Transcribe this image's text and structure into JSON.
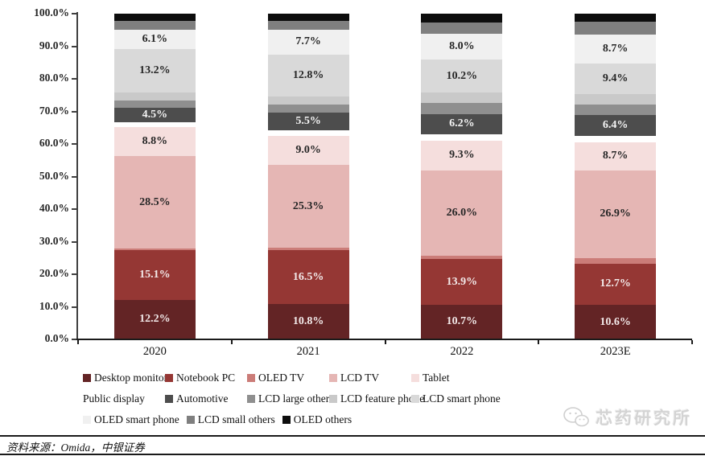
{
  "source_note": "资料来源：Omida，中银证券",
  "watermark": {
    "text": "芯药研究所",
    "icon": "wechat-bubbles-icon"
  },
  "chart_data": {
    "type": "bar",
    "stacked": true,
    "title": "",
    "categories": [
      "2020",
      "2021",
      "2022",
      "2023E"
    ],
    "series": [
      {
        "name": "Desktop monitor",
        "color": "#632425",
        "show_label": true,
        "label_color": "#f3eaea",
        "values": [
          12.2,
          10.8,
          10.7,
          10.6
        ]
      },
      {
        "name": "Notebook PC",
        "color": "#953734",
        "show_label": true,
        "label_color": "#f3eaea",
        "values": [
          15.1,
          16.5,
          13.9,
          12.7
        ]
      },
      {
        "name": "OLED TV",
        "color": "#cb7c78",
        "show_label": false,
        "values": [
          0.5,
          0.9,
          1.2,
          1.7
        ]
      },
      {
        "name": "LCD TV",
        "color": "#e5b6b4",
        "show_label": true,
        "label_color": "#262626",
        "values": [
          28.5,
          25.3,
          26.0,
          26.9
        ]
      },
      {
        "name": "Tablet",
        "color": "#f5dedd",
        "show_label": true,
        "label_color": "#262626",
        "values": [
          8.8,
          9.0,
          9.3,
          8.7
        ]
      },
      {
        "name": "Public display",
        "color": "#ffffff",
        "show_label": false,
        "values": [
          1.6,
          1.7,
          1.9,
          1.8
        ]
      },
      {
        "name": "Automotive",
        "color": "#4d4d4d",
        "show_label": true,
        "label_color": "#f5f5f5",
        "values": [
          4.5,
          5.5,
          6.2,
          6.4
        ]
      },
      {
        "name": "LCD large others",
        "color": "#8f8f8f",
        "show_label": false,
        "values": [
          2.2,
          2.4,
          3.3,
          3.3
        ]
      },
      {
        "name": "LCD feature phone",
        "color": "#c9c9c9",
        "show_label": false,
        "values": [
          2.5,
          2.6,
          3.2,
          3.3
        ]
      },
      {
        "name": "LCD smart phone",
        "color": "#d9d9d9",
        "show_label": true,
        "label_color": "#262626",
        "values": [
          13.2,
          12.8,
          10.2,
          9.4
        ]
      },
      {
        "name": "OLED smart phone",
        "color": "#f0f0f0",
        "show_label": true,
        "label_color": "#262626",
        "values": [
          6.1,
          7.7,
          8.0,
          8.7
        ]
      },
      {
        "name": "LCD small others",
        "color": "#7f7f7f",
        "show_label": false,
        "values": [
          2.6,
          2.6,
          3.5,
          4.0
        ]
      },
      {
        "name": "OLED others",
        "color": "#0d0d0d",
        "show_label": false,
        "values": [
          2.2,
          2.2,
          2.6,
          2.5
        ]
      }
    ],
    "y_axis": {
      "min": 0,
      "max": 100,
      "ticks": [
        "0.0%",
        "10.0%",
        "20.0%",
        "30.0%",
        "40.0%",
        "50.0%",
        "60.0%",
        "70.0%",
        "80.0%",
        "90.0%",
        "100.0%"
      ]
    },
    "grid": false,
    "legend_position": "bottom",
    "legend_rows": [
      [
        0,
        1,
        2,
        3,
        4
      ],
      [
        5,
        6,
        7,
        8,
        9
      ],
      [
        10,
        11,
        12
      ]
    ]
  }
}
